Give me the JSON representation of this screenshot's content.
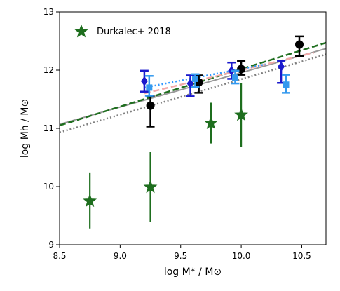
{
  "chart_data": {
    "type": "scatter",
    "xlabel": "log M* / M⊙",
    "ylabel": "log Mh / M⊙",
    "xlim": [
      8.5,
      10.7
    ],
    "ylim": [
      9,
      13
    ],
    "xticks": [
      8.5,
      9.0,
      9.5,
      10.0,
      10.5
    ],
    "xtick_labels": [
      "8.5",
      "9.0",
      "9.5",
      "10.0",
      "10.5"
    ],
    "yticks": [
      9,
      10,
      11,
      12,
      13
    ],
    "ytick_labels": [
      "9",
      "10",
      "11",
      "12",
      "13"
    ],
    "legend": {
      "position": "top-left",
      "entries": [
        "Durkalec+ 2018"
      ]
    },
    "grid": false,
    "lines": [
      {
        "color": "#999999",
        "style": "solid",
        "x": [
          8.5,
          10.7
        ],
        "y": [
          11.07,
          12.37
        ]
      },
      {
        "color": "#808080",
        "style": "dotted",
        "x": [
          8.5,
          10.7
        ],
        "y": [
          10.93,
          12.27
        ]
      },
      {
        "color": "#1e6e1e",
        "style": "dashed",
        "x": [
          8.5,
          10.7
        ],
        "y": [
          11.05,
          12.47
        ]
      },
      {
        "color": "#f2aaaa",
        "style": "dashed",
        "x": [
          9.2,
          10.6
        ],
        "y": [
          11.6,
          12.3
        ]
      },
      {
        "color": "#3399ff",
        "style": "dotted",
        "x": [
          9.2,
          10.2
        ],
        "y": [
          11.7,
          12.1
        ]
      }
    ],
    "series": [
      {
        "name": "Durkalec+ 2018",
        "marker": "star",
        "color": "#1e6e1e",
        "x": [
          8.75,
          9.25,
          9.75,
          10.0
        ],
        "y": [
          9.75,
          9.99,
          11.09,
          11.23
        ],
        "yerr_low": [
          0.47,
          0.6,
          0.35,
          0.55
        ],
        "yerr_high": [
          0.48,
          0.6,
          0.35,
          0.55
        ]
      },
      {
        "marker": "circle",
        "color": "#000000",
        "x": [
          9.25,
          9.65,
          10.0,
          10.48
        ],
        "y": [
          11.39,
          11.79,
          12.02,
          12.44
        ],
        "yerr_low": [
          0.36,
          0.18,
          0.1,
          0.2
        ],
        "yerr_high": [
          0.16,
          0.12,
          0.14,
          0.14
        ]
      },
      {
        "marker": "diamond",
        "color": "#1a1acc",
        "x": [
          9.2,
          9.58,
          9.92,
          10.33
        ],
        "y": [
          11.81,
          11.77,
          11.99,
          12.06
        ],
        "yerr_low": [
          0.18,
          0.22,
          0.14,
          0.28
        ],
        "yerr_high": [
          0.18,
          0.14,
          0.14,
          0.1
        ]
      },
      {
        "marker": "square",
        "color": "#3399ee",
        "x": [
          9.24,
          9.62,
          9.95,
          10.37
        ],
        "y": [
          11.7,
          11.85,
          11.87,
          11.75
        ],
        "yerr_low": [
          0.14,
          0.14,
          0.1,
          0.14
        ],
        "yerr_high": [
          0.2,
          0.08,
          0.12,
          0.17
        ]
      }
    ]
  }
}
